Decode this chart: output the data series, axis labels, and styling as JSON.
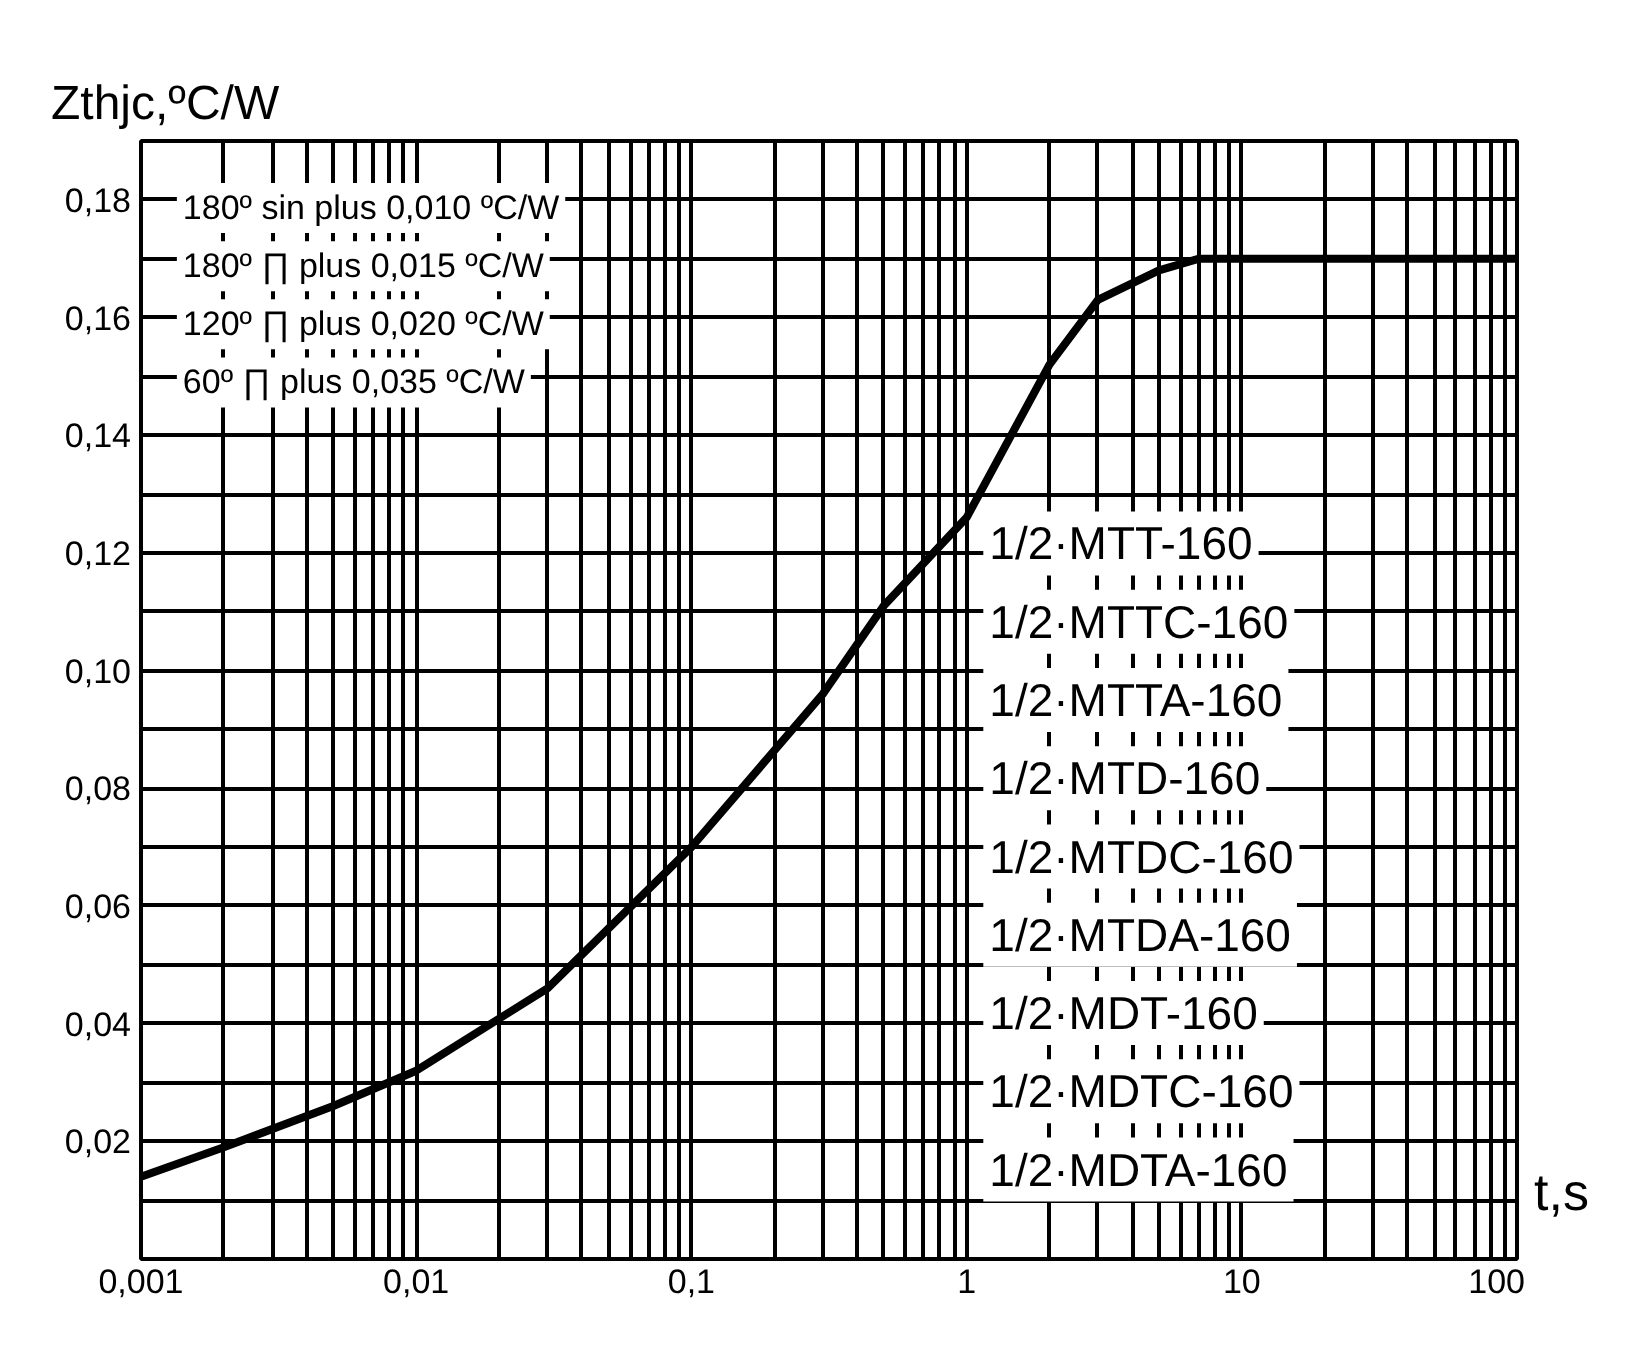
{
  "chart_data": {
    "type": "line",
    "ylabel": "Zthjc,ºC/W",
    "xlabel": "t,s",
    "log": "x",
    "grid": true,
    "marker": "none",
    "line_style": "solid",
    "x": [
      0.001,
      0.002,
      0.005,
      0.01,
      0.03,
      0.1,
      0.3,
      0.5,
      1,
      2,
      3,
      5,
      7,
      10,
      100
    ],
    "series": [
      {
        "color": "#000000",
        "values": [
          0.014,
          0.019,
          0.026,
          0.032,
          0.046,
          0.07,
          0.096,
          0.111,
          0.126,
          0.152,
          0.163,
          0.168,
          0.17,
          0.17,
          0.17
        ]
      }
    ],
    "xlim": [
      0.001,
      100
    ],
    "xticks": [
      {
        "value": 0.001,
        "label": "0,001"
      },
      {
        "value": 0.002,
        "label": null
      },
      {
        "value": 0.003,
        "label": null
      },
      {
        "value": 0.004,
        "label": null
      },
      {
        "value": 0.005,
        "label": null
      },
      {
        "value": 0.006,
        "label": null
      },
      {
        "value": 0.007,
        "label": null
      },
      {
        "value": 0.008,
        "label": null
      },
      {
        "value": 0.009,
        "label": null
      },
      {
        "value": 0.01,
        "label": "0,01"
      },
      {
        "value": 0.02,
        "label": null
      },
      {
        "value": 0.03,
        "label": null
      },
      {
        "value": 0.04,
        "label": null
      },
      {
        "value": 0.05,
        "label": null
      },
      {
        "value": 0.06,
        "label": null
      },
      {
        "value": 0.07,
        "label": null
      },
      {
        "value": 0.08,
        "label": null
      },
      {
        "value": 0.09,
        "label": null
      },
      {
        "value": 0.1,
        "label": "0,1"
      },
      {
        "value": 0.2,
        "label": null
      },
      {
        "value": 0.3,
        "label": null
      },
      {
        "value": 0.4,
        "label": null
      },
      {
        "value": 0.5,
        "label": null
      },
      {
        "value": 0.6,
        "label": null
      },
      {
        "value": 0.7,
        "label": null
      },
      {
        "value": 0.8,
        "label": null
      },
      {
        "value": 0.9,
        "label": null
      },
      {
        "value": 1,
        "label": "1"
      },
      {
        "value": 2,
        "label": null
      },
      {
        "value": 3,
        "label": null
      },
      {
        "value": 4,
        "label": null
      },
      {
        "value": 5,
        "label": null
      },
      {
        "value": 6,
        "label": null
      },
      {
        "value": 7,
        "label": null
      },
      {
        "value": 8,
        "label": null
      },
      {
        "value": 9,
        "label": null
      },
      {
        "value": 10,
        "label": "10"
      },
      {
        "value": 20,
        "label": null
      },
      {
        "value": 30,
        "label": null
      },
      {
        "value": 40,
        "label": null
      },
      {
        "value": 50,
        "label": null
      },
      {
        "value": 60,
        "label": null
      },
      {
        "value": 70,
        "label": null
      },
      {
        "value": 80,
        "label": null
      },
      {
        "value": 90,
        "label": null
      },
      {
        "value": 100,
        "label": "100"
      }
    ],
    "ylim": [
      0,
      0.19
    ],
    "yticks": [
      {
        "value": 0.01,
        "label": null
      },
      {
        "value": 0.02,
        "label": "0,02"
      },
      {
        "value": 0.03,
        "label": null
      },
      {
        "value": 0.04,
        "label": "0,04"
      },
      {
        "value": 0.05,
        "label": null
      },
      {
        "value": 0.06,
        "label": "0,06"
      },
      {
        "value": 0.07,
        "label": null
      },
      {
        "value": 0.08,
        "label": "0,08"
      },
      {
        "value": 0.09,
        "label": null
      },
      {
        "value": 0.1,
        "label": "0,10"
      },
      {
        "value": 0.11,
        "label": null
      },
      {
        "value": 0.12,
        "label": "0,12"
      },
      {
        "value": 0.13,
        "label": null
      },
      {
        "value": 0.14,
        "label": "0,14"
      },
      {
        "value": 0.15,
        "label": null
      },
      {
        "value": 0.16,
        "label": "0,16"
      },
      {
        "value": 0.17,
        "label": null
      },
      {
        "value": 0.18,
        "label": "0,18"
      }
    ],
    "annotations": [
      "180º sin plus 0,010 ºC/W",
      "180º ∏ plus 0,015 ºC/W",
      "120º ∏ plus 0,020 ºC/W",
      "60º ∏ plus 0,035 ºC/W",
      "1/2·MTT-160",
      "1/2·MTTC-160",
      "1/2·MTTA-160",
      "1/2·MTD-160",
      "1/2·MTDC-160",
      "1/2·MTDA-160",
      "1/2·MDT-160",
      "1/2·MDTC-160",
      "1/2·MDTA-160"
    ]
  }
}
